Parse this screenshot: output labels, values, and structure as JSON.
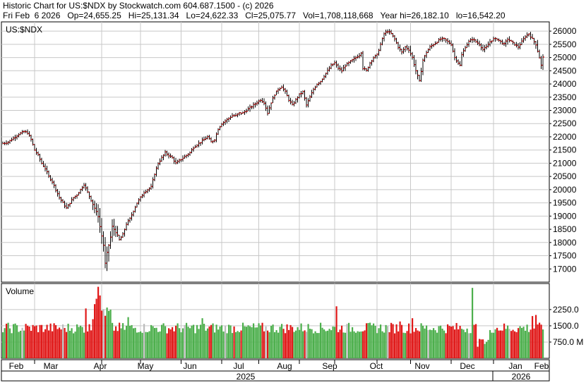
{
  "header": {
    "line1": "Historic Chart for US:$NDX by Stockwatch.com 604.687.1500 - (c) 2026",
    "date": "Fri Feb  6 2026",
    "open": "Op=24,655.25",
    "high": "Hi=25,131.34",
    "low": "Lo=24,622.33",
    "close": "Cl=25,075.77",
    "volume": "Vol=1,708,118,668",
    "year_high": "Year hi=26,182.10",
    "year_low": "lo=16,542.20"
  },
  "chart_data": [
    {
      "type": "ohlc",
      "symbol_label": "US:$NDX",
      "ylim": [
        16500,
        26350
      ],
      "y_ticks": [
        17000,
        17500,
        18000,
        18500,
        19000,
        19500,
        20000,
        20500,
        21000,
        21500,
        22000,
        22500,
        23000,
        23500,
        24000,
        24500,
        25000,
        25500,
        26000
      ],
      "y_tick_labels": [
        "17000",
        "17500",
        "18000",
        "18500",
        "19000",
        "19500",
        "20000",
        "20500",
        "21000",
        "21500",
        "22000",
        "22500",
        "23000",
        "23500",
        "24000",
        "24500",
        "25000",
        "25500",
        "26000"
      ],
      "month_labels": [
        "Feb",
        "Mar",
        "Apr",
        "May",
        "Jun",
        "Jul",
        "Aug",
        "Sep",
        "Oct",
        "Nov",
        "Dec",
        "Jan",
        "Feb"
      ],
      "year_labels": [
        "2025",
        "2026"
      ],
      "grid": true,
      "close_series": [
        [
          0,
          21750
        ],
        [
          3,
          21800
        ],
        [
          6,
          21950
        ],
        [
          9,
          22100
        ],
        [
          12,
          22200
        ],
        [
          14,
          22150
        ],
        [
          16,
          21900
        ],
        [
          18,
          21500
        ],
        [
          20,
          21300
        ],
        [
          22,
          21000
        ],
        [
          24,
          20800
        ],
        [
          26,
          20500
        ],
        [
          28,
          20300
        ],
        [
          30,
          20000
        ],
        [
          32,
          19700
        ],
        [
          34,
          19500
        ],
        [
          36,
          19300
        ],
        [
          38,
          19500
        ],
        [
          40,
          19700
        ],
        [
          42,
          19800
        ],
        [
          44,
          20000
        ],
        [
          46,
          20200
        ],
        [
          48,
          19900
        ],
        [
          50,
          19600
        ],
        [
          52,
          19300
        ],
        [
          54,
          19000
        ],
        [
          55,
          18600
        ],
        [
          57,
          17900
        ],
        [
          58,
          17200
        ],
        [
          59,
          17600
        ],
        [
          60,
          17900
        ],
        [
          61,
          18200
        ],
        [
          62,
          18600
        ],
        [
          64,
          18400
        ],
        [
          66,
          18100
        ],
        [
          68,
          18300
        ],
        [
          70,
          18700
        ],
        [
          72,
          18900
        ],
        [
          74,
          19200
        ],
        [
          76,
          19500
        ],
        [
          78,
          19700
        ],
        [
          80,
          19900
        ],
        [
          82,
          20000
        ],
        [
          84,
          20100
        ],
        [
          86,
          20600
        ],
        [
          88,
          21000
        ],
        [
          90,
          21200
        ],
        [
          92,
          21400
        ],
        [
          94,
          21300
        ],
        [
          96,
          21200
        ],
        [
          98,
          21000
        ],
        [
          100,
          21100
        ],
        [
          102,
          21200
        ],
        [
          104,
          21300
        ],
        [
          106,
          21400
        ],
        [
          108,
          21600
        ],
        [
          110,
          21700
        ],
        [
          112,
          21800
        ],
        [
          114,
          21900
        ],
        [
          116,
          22000
        ],
        [
          118,
          21800
        ],
        [
          120,
          21900
        ],
        [
          122,
          22300
        ],
        [
          124,
          22500
        ],
        [
          126,
          22600
        ],
        [
          128,
          22700
        ],
        [
          130,
          22800
        ],
        [
          132,
          22800
        ],
        [
          134,
          22900
        ],
        [
          136,
          22900
        ],
        [
          138,
          23000
        ],
        [
          140,
          23100
        ],
        [
          142,
          23200
        ],
        [
          144,
          23300
        ],
        [
          146,
          23400
        ],
        [
          148,
          23300
        ],
        [
          150,
          22900
        ],
        [
          152,
          23300
        ],
        [
          154,
          23600
        ],
        [
          156,
          23800
        ],
        [
          158,
          23900
        ],
        [
          160,
          23700
        ],
        [
          162,
          23400
        ],
        [
          164,
          23200
        ],
        [
          166,
          23400
        ],
        [
          168,
          23600
        ],
        [
          170,
          23700
        ],
        [
          172,
          23200
        ],
        [
          174,
          23500
        ],
        [
          176,
          23800
        ],
        [
          178,
          24000
        ],
        [
          180,
          24100
        ],
        [
          182,
          24300
        ],
        [
          184,
          24500
        ],
        [
          186,
          24700
        ],
        [
          188,
          24800
        ],
        [
          190,
          24600
        ],
        [
          192,
          24500
        ],
        [
          194,
          24700
        ],
        [
          196,
          24800
        ],
        [
          198,
          24900
        ],
        [
          200,
          25000
        ],
        [
          202,
          25100
        ],
        [
          203,
          25200
        ],
        [
          204,
          24600
        ],
        [
          206,
          24500
        ],
        [
          208,
          24800
        ],
        [
          210,
          25000
        ],
        [
          212,
          25100
        ],
        [
          214,
          25500
        ],
        [
          216,
          25900
        ],
        [
          218,
          26000
        ],
        [
          220,
          25900
        ],
        [
          222,
          25700
        ],
        [
          224,
          25400
        ],
        [
          226,
          25200
        ],
        [
          228,
          25400
        ],
        [
          230,
          25300
        ],
        [
          232,
          25000
        ],
        [
          234,
          24500
        ],
        [
          236,
          24100
        ],
        [
          237,
          24500
        ],
        [
          238,
          24900
        ],
        [
          240,
          25200
        ],
        [
          242,
          25400
        ],
        [
          244,
          25500
        ],
        [
          246,
          25600
        ],
        [
          248,
          25700
        ],
        [
          250,
          25700
        ],
        [
          252,
          25600
        ],
        [
          254,
          25500
        ],
        [
          256,
          25000
        ],
        [
          258,
          24800
        ],
        [
          259,
          24700
        ],
        [
          260,
          25100
        ],
        [
          262,
          25400
        ],
        [
          264,
          25600
        ],
        [
          266,
          25700
        ],
        [
          268,
          25600
        ],
        [
          270,
          25500
        ],
        [
          272,
          25300
        ],
        [
          274,
          25400
        ],
        [
          276,
          25600
        ],
        [
          278,
          25700
        ],
        [
          280,
          25700
        ],
        [
          282,
          25600
        ],
        [
          284,
          25500
        ],
        [
          286,
          25700
        ],
        [
          288,
          25600
        ],
        [
          290,
          25500
        ],
        [
          292,
          25400
        ],
        [
          294,
          25600
        ],
        [
          296,
          25800
        ],
        [
          298,
          25900
        ],
        [
          300,
          25700
        ],
        [
          302,
          25500
        ],
        [
          304,
          25000
        ],
        [
          305,
          24700
        ],
        [
          306,
          25000
        ]
      ]
    },
    {
      "type": "bar",
      "title": "Volume",
      "ylim": [
        0,
        3450
      ],
      "y_ticks": [
        750,
        1500,
        2250
      ],
      "y_tick_labels": [
        "750.0 M",
        "1500.0",
        "2250.0"
      ],
      "color_up": "#4caf4c",
      "color_down": "#e01818",
      "color_neutral": "#bbbbbb"
    }
  ],
  "colors": {
    "background": "#ffffff",
    "grid": "#c8c8c8",
    "bar": "#000000",
    "close_tick": "#cc0000"
  }
}
